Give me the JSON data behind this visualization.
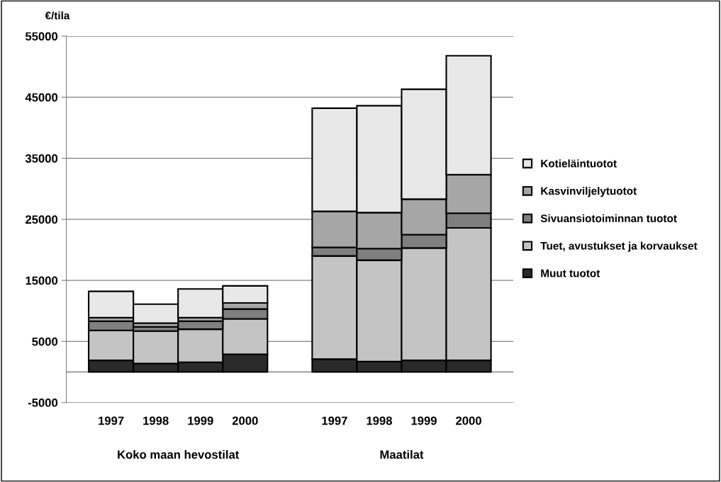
{
  "chart_data": {
    "type": "bar",
    "stacked": true,
    "ylabel": "€/tila",
    "categories": [
      "1997",
      "1998",
      "1999",
      "2000",
      null,
      "1997",
      "1998",
      "1999",
      "2000"
    ],
    "series": [
      {
        "name": "Muut tuotot",
        "color": "#2a2a2a",
        "values": [
          1900,
          1400,
          1600,
          2900,
          null,
          2100,
          1700,
          1900,
          1900
        ]
      },
      {
        "name": "Tuet, avustukset ja korvaukset",
        "color": "#c4c4c4",
        "values": [
          4900,
          5300,
          5400,
          5800,
          null,
          16900,
          16600,
          18400,
          21700
        ]
      },
      {
        "name": "Sivuansiotoiminnan tuotot",
        "color": "#7f7f7f",
        "values": [
          1500,
          700,
          1300,
          1600,
          null,
          1400,
          1900,
          2200,
          2400
        ]
      },
      {
        "name": "Kasvinviljelytuotot",
        "color": "#a6a6a6",
        "values": [
          600,
          600,
          600,
          1000,
          null,
          5900,
          5900,
          5800,
          6300
        ]
      },
      {
        "name": "Kotieläintuotot",
        "color": "#e8e8e8",
        "values": [
          4300,
          3100,
          4700,
          2800,
          null,
          16900,
          17500,
          18000,
          19500
        ]
      }
    ],
    "ylim": [
      -5000,
      55000
    ],
    "yticks": [
      -5000,
      5000,
      15000,
      25000,
      35000,
      45000,
      55000
    ],
    "grid": "y",
    "legend": "right",
    "annotations": [
      "Koko maan hevostilat",
      "Maatilat"
    ]
  }
}
